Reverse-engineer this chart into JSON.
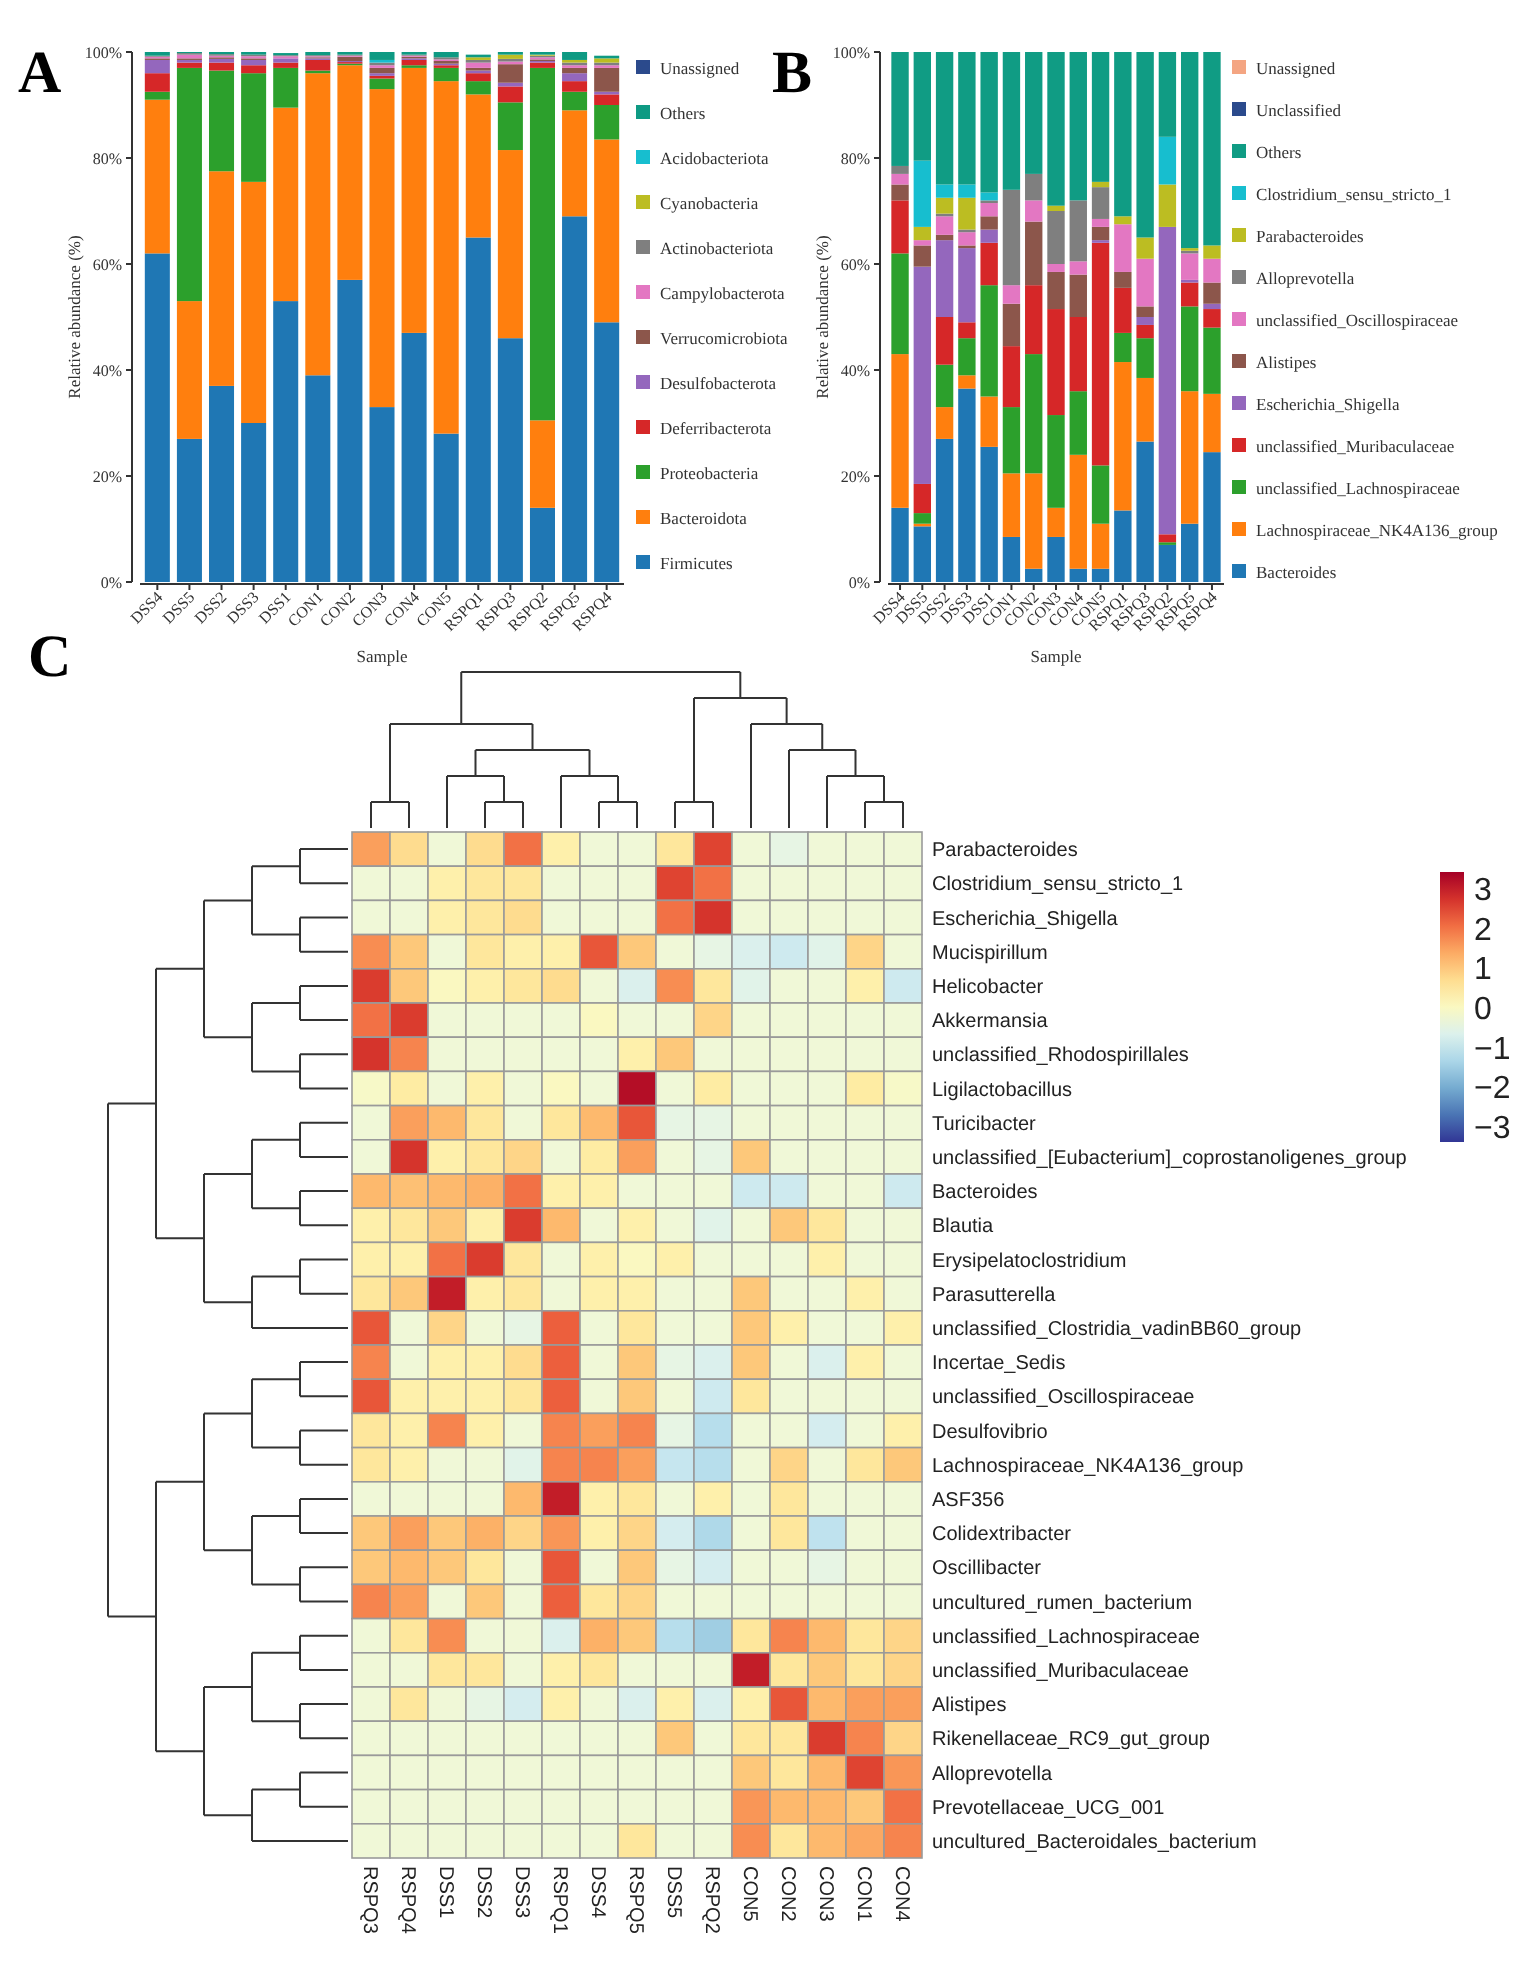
{
  "chart_data": [
    {
      "type": "bar",
      "title": "A",
      "xlabel": "Sample",
      "ylabel": "Relative abundance (%)",
      "stacked": true,
      "legend": "right",
      "categories": [
        "DSS4",
        "DSS5",
        "DSS2",
        "DSS3",
        "DSS1",
        "CON1",
        "CON2",
        "CON3",
        "CON4",
        "CON5",
        "RSPQ1",
        "RSPQ3",
        "RSPQ2",
        "RSPQ5",
        "RSPQ4"
      ],
      "ylim": [
        0,
        100
      ],
      "yticks": [
        {
          "value": 0,
          "label": "0%"
        },
        {
          "value": 20,
          "label": "20%"
        },
        {
          "value": 40,
          "label": "40%"
        },
        {
          "value": 60,
          "label": "60%"
        },
        {
          "value": 80,
          "label": "80%"
        },
        {
          "value": 100,
          "label": "100%"
        }
      ],
      "series": [
        {
          "name": "Firmicutes",
          "color": "#1f77b4",
          "values": [
            62,
            27,
            37,
            30,
            53,
            39,
            57,
            33,
            47,
            28,
            65,
            46,
            14,
            69,
            49
          ]
        },
        {
          "name": "Bacteroidota",
          "color": "#ff7f0e",
          "values": [
            29,
            26,
            40.5,
            45.5,
            36.5,
            57,
            40.5,
            60,
            50,
            66.5,
            27,
            35.5,
            16.5,
            20,
            34.5
          ]
        },
        {
          "name": "Proteobacteria",
          "color": "#2ca02c",
          "values": [
            1.5,
            44,
            19,
            20.5,
            7.5,
            0.5,
            0.3,
            2,
            0.5,
            2.5,
            2.5,
            9,
            66.5,
            3.5,
            6.5
          ]
        },
        {
          "name": "Deferribacterota",
          "color": "#d62728",
          "values": [
            3.5,
            1,
            1.5,
            1.5,
            1,
            2,
            0.3,
            0.5,
            1,
            0.5,
            1.5,
            3,
            1,
            2,
            2
          ]
        },
        {
          "name": "Desulfobacterota",
          "color": "#9467bd",
          "values": [
            2.5,
            0.5,
            0.7,
            1,
            0.8,
            0.3,
            0.2,
            0.5,
            0.3,
            0.3,
            0.5,
            0.7,
            0.3,
            1.5,
            0.5
          ]
        },
        {
          "name": "Verrucomicrobiota",
          "color": "#8c564b",
          "values": [
            0.3,
            0.3,
            0.3,
            0.3,
            null,
            0.2,
            0.8,
            1,
            0.3,
            0.5,
            0.5,
            3.5,
            0.3,
            1,
            4.5
          ]
        },
        {
          "name": "Campylobacterota",
          "color": "#e377c2",
          "values": [
            0.3,
            0.7,
            0.3,
            0.4,
            0.4,
            0.2,
            0.2,
            0.5,
            0.2,
            0.3,
            1,
            0.5,
            0.4,
            0.5,
            0.5
          ]
        },
        {
          "name": "Actinobacteriota",
          "color": "#7f7f7f",
          "values": [
            0.2,
            0.3,
            0.3,
            0.3,
            0.2,
            0.2,
            0.2,
            0.5,
            0.2,
            0.4,
            0.5,
            0.5,
            0.3,
            0.5,
            0.5
          ]
        },
        {
          "name": "Cyanobacteria",
          "color": "#bcbd22",
          "values": [
            0,
            0,
            0,
            0,
            0,
            0,
            0,
            0,
            0,
            0,
            0.5,
            0.8,
            0.2,
            0.5,
            0.8
          ]
        },
        {
          "name": "Acidobacteriota",
          "color": "#17becf",
          "values": [
            0,
            0,
            0,
            0,
            0,
            0,
            0,
            0.5,
            0,
            0,
            0,
            0,
            0,
            0,
            null
          ]
        },
        {
          "name": "Others",
          "color": "#0e9a83",
          "values": [
            0.7,
            0.2,
            0.4,
            0.5,
            0.4,
            0.6,
            0.5,
            1.5,
            0.5,
            1,
            0.5,
            0.5,
            0.5,
            1.5,
            0.5
          ]
        },
        {
          "name": "Unassigned",
          "color": "#2b4a8c",
          "values": [
            0,
            0,
            0,
            0,
            0,
            0,
            0,
            0,
            0,
            0,
            0,
            0,
            0,
            0,
            0
          ]
        }
      ]
    },
    {
      "type": "bar",
      "title": "B",
      "xlabel": "Sample",
      "ylabel": "Relative abundance (%)",
      "stacked": true,
      "legend": "right",
      "categories": [
        "DSS4",
        "DSS5",
        "DSS2",
        "DSS3",
        "DSS1",
        "CON1",
        "CON2",
        "CON3",
        "CON4",
        "CON5",
        "RSPQ1",
        "RSPQ3",
        "RSPQ2",
        "RSPQ5",
        "RSPQ4"
      ],
      "ylim": [
        0,
        100
      ],
      "yticks": [
        {
          "value": 0,
          "label": "0%"
        },
        {
          "value": 20,
          "label": "20%"
        },
        {
          "value": 40,
          "label": "40%"
        },
        {
          "value": 60,
          "label": "60%"
        },
        {
          "value": 80,
          "label": "80%"
        },
        {
          "value": 100,
          "label": "100%"
        }
      ],
      "series": [
        {
          "name": "Bacteroides",
          "color": "#1f77b4",
          "values": [
            14,
            10.5,
            27,
            36.5,
            25.5,
            8.5,
            2.5,
            8.5,
            2.5,
            2.5,
            13.5,
            26.5,
            7,
            11,
            24.5
          ]
        },
        {
          "name": "Lachnospiraceae_NK4A136_group",
          "color": "#ff7f0e",
          "values": [
            29,
            0.5,
            6,
            2.5,
            9.5,
            12,
            18,
            5.5,
            21.5,
            8.5,
            28,
            12,
            0,
            25,
            11
          ]
        },
        {
          "name": "unclassified_Lachnospiraceae",
          "color": "#2ca02c",
          "values": [
            19,
            2,
            8,
            7,
            21,
            12.5,
            22.5,
            17.5,
            12,
            11,
            5.5,
            7.5,
            0.5,
            16,
            12.5
          ]
        },
        {
          "name": "unclassified_Muribaculaceae",
          "color": "#d62728",
          "values": [
            10,
            5.5,
            9,
            3,
            8,
            11.5,
            13,
            20,
            14,
            42,
            8.5,
            2.5,
            1.5,
            4.5,
            3.5
          ]
        },
        {
          "name": "Escherichia_Shigella",
          "color": "#9467bd",
          "values": [
            0,
            41,
            14.5,
            14,
            2.5,
            0,
            0,
            0,
            0,
            0.5,
            0,
            1.5,
            58,
            0.5,
            1
          ]
        },
        {
          "name": "Alistipes",
          "color": "#8c564b",
          "values": [
            3,
            4,
            1,
            0.5,
            2.5,
            8,
            12,
            7,
            8,
            2.5,
            3,
            2,
            0,
            0,
            4
          ]
        },
        {
          "name": "unclassified_Oscillospiraceae",
          "color": "#e377c2",
          "values": [
            2,
            1,
            3.5,
            2.5,
            2.5,
            3.5,
            4,
            1.5,
            2.5,
            1.5,
            9,
            9,
            0,
            5,
            4.5
          ]
        },
        {
          "name": "Alloprevotella",
          "color": "#7f7f7f",
          "values": [
            1.5,
            0,
            0.5,
            0.5,
            0.5,
            18,
            5,
            10,
            11.5,
            6,
            0,
            0,
            0,
            0.5,
            0
          ]
        },
        {
          "name": "Parabacteroides",
          "color": "#bcbd22",
          "values": [
            0,
            2.5,
            3,
            6,
            0,
            0,
            0,
            1,
            0,
            1,
            1.5,
            4,
            8,
            0.5,
            2.5
          ]
        },
        {
          "name": "Clostridium_sensu_stricto_1",
          "color": "#17becf",
          "values": [
            0,
            12.5,
            2.5,
            2.5,
            1.5,
            0,
            0,
            0,
            0,
            0,
            0,
            0,
            9,
            0,
            0
          ]
        },
        {
          "name": "Others",
          "color": "#109c84",
          "values": [
            21.5,
            20.5,
            25,
            25,
            26.5,
            26,
            23,
            29,
            28,
            24.5,
            31,
            35,
            16,
            37,
            36.5
          ]
        },
        {
          "name": "Unclassified",
          "color": "#2b4a8c",
          "values": [
            0,
            0,
            0,
            0,
            0,
            0,
            0,
            0,
            0,
            0,
            0,
            0,
            0,
            0,
            0
          ]
        },
        {
          "name": "Unassigned",
          "color": "#f4a582",
          "values": [
            0,
            0,
            0,
            0,
            0,
            0,
            0,
            0,
            0,
            0,
            0,
            0,
            0,
            0,
            0
          ]
        }
      ]
    },
    {
      "type": "heatmap",
      "title": "C",
      "categories": [
        "RSPQ3",
        "RSPQ4",
        "DSS1",
        "DSS2",
        "DSS3",
        "RSPQ1",
        "DSS4",
        "RSPQ5",
        "DSS5",
        "RSPQ2",
        "CON5",
        "CON2",
        "CON3",
        "CON1",
        "CON4"
      ],
      "y_categories": [
        "Parabacteroides",
        "Clostridium_sensu_stricto_1",
        "Escherichia_Shigella",
        "Mucispirillum",
        "Helicobacter",
        "Akkermansia",
        "unclassified_Rhodospirillales",
        "Ligilactobacillus",
        "Turicibacter",
        "unclassified_[Eubacterium]_coprostanoligenes_group",
        "Bacteroides",
        "Blautia",
        "Erysipelatoclostridium",
        "Parasutterella",
        "unclassified_Clostridia_vadinBB60_group",
        "Incertae_Sedis",
        "unclassified_Oscillospiraceae",
        "Desulfovibrio",
        "Lachnospiraceae_NK4A136_group",
        "ASF356",
        "Colidextribacter",
        "Oscillibacter",
        "uncultured_rumen_bacterium",
        "unclassified_Lachnospiraceae",
        "unclassified_Muribaculaceae",
        "Alistipes",
        "Rikenellaceae_RC9_gut_group",
        "Alloprevotella",
        "Prevotellaceae_UCG_001",
        "uncultured_Bacteroidales_bacterium"
      ],
      "clim": [
        -3.4,
        3.4
      ],
      "cticks": [
        {
          "value": -3,
          "label": "−3"
        },
        {
          "value": -2,
          "label": "−2"
        },
        {
          "value": -1,
          "label": "−1"
        },
        0,
        1,
        2,
        3
      ],
      "cells": [
        [
          1.5,
          0.7,
          -0.3,
          0.7,
          2,
          0.3,
          -0.3,
          -0.3,
          0.5,
          2.5,
          -0.3,
          -0.5,
          -0.3,
          -0.3,
          -0.3
        ],
        [
          -0.3,
          -0.3,
          0.3,
          0.5,
          0.5,
          -0.3,
          -0.3,
          -0.3,
          2.5,
          2,
          -0.3,
          -0.3,
          -0.3,
          -0.3,
          -0.3
        ],
        [
          -0.3,
          -0.3,
          0.3,
          0.5,
          0.7,
          -0.3,
          -0.3,
          -0.3,
          2,
          2.7,
          -0.3,
          -0.3,
          -0.3,
          -0.3,
          -0.3
        ],
        [
          1.7,
          1,
          -0.3,
          0.5,
          0.3,
          0.3,
          2.3,
          1,
          -0.3,
          -0.5,
          -0.7,
          -0.9,
          -0.6,
          0.8,
          -0.3
        ],
        [
          2.6,
          1,
          0,
          0.3,
          0.5,
          0.7,
          -0.3,
          -0.7,
          1.7,
          0.5,
          -0.6,
          -0.3,
          -0.3,
          0.3,
          -0.9
        ],
        [
          2,
          2.6,
          -0.3,
          -0.3,
          -0.3,
          -0.3,
          0,
          -0.3,
          -0.3,
          0.8,
          -0.3,
          -0.3,
          -0.3,
          -0.3,
          -0.3
        ],
        [
          2.7,
          1.8,
          -0.3,
          -0.3,
          -0.3,
          -0.3,
          -0.3,
          0.3,
          1,
          -0.3,
          -0.3,
          -0.3,
          -0.3,
          -0.3,
          -0.3
        ],
        [
          -0.1,
          0.4,
          -0.3,
          0.3,
          -0.3,
          0,
          -0.3,
          3.2,
          -0.3,
          0.4,
          -0.3,
          -0.3,
          -0.3,
          0.4,
          -0.1
        ],
        [
          -0.3,
          1.5,
          1.2,
          0.5,
          -0.3,
          0.5,
          1.2,
          2.3,
          -0.5,
          -0.5,
          -0.3,
          -0.3,
          -0.3,
          -0.3,
          -0.3
        ],
        [
          -0.3,
          2.7,
          0.3,
          0.5,
          0.8,
          -0.3,
          0.4,
          1.5,
          -0.3,
          -0.5,
          1,
          -0.3,
          -0.3,
          -0.3,
          -0.3
        ],
        [
          1.2,
          1.1,
          1.2,
          1.3,
          2,
          0.3,
          0.3,
          -0.3,
          -0.3,
          -0.3,
          -0.9,
          -0.9,
          -0.3,
          -0.3,
          -0.9
        ],
        [
          0.3,
          0.5,
          1,
          0.3,
          2.6,
          1.2,
          -0.3,
          0.3,
          -0.3,
          -0.6,
          -0.3,
          1,
          0.5,
          -0.3,
          -0.3
        ],
        [
          0.3,
          0.3,
          2,
          2.6,
          0.5,
          -0.3,
          0.3,
          0,
          0.3,
          -0.3,
          -0.3,
          -0.3,
          0.3,
          -0.3,
          -0.3
        ],
        [
          0.5,
          1,
          3,
          0.3,
          0.5,
          -0.3,
          0.3,
          0.3,
          -0.3,
          -0.3,
          1,
          -0.3,
          -0.3,
          0.3,
          -0.3
        ],
        [
          2.3,
          -0.3,
          0.8,
          -0.3,
          -0.5,
          2.2,
          -0.3,
          0.5,
          -0.3,
          -0.3,
          1,
          0.3,
          -0.3,
          -0.3,
          0.3
        ],
        [
          1.8,
          -0.3,
          0.3,
          0.3,
          0.7,
          2.2,
          -0.3,
          1,
          -0.5,
          -0.7,
          1,
          -0.3,
          -0.7,
          0.3,
          -0.3
        ],
        [
          2.3,
          0.3,
          0.3,
          0.3,
          0.5,
          2.2,
          -0.3,
          1,
          -0.3,
          -0.9,
          0.5,
          -0.3,
          -0.3,
          -0.3,
          -0.3
        ],
        [
          0.5,
          0.3,
          1.8,
          0.3,
          -0.3,
          1.8,
          1.5,
          1.8,
          -0.5,
          -1.2,
          -0.3,
          -0.3,
          -0.8,
          -0.3,
          0.3
        ],
        [
          0.5,
          0.3,
          -0.3,
          -0.3,
          -0.6,
          1.8,
          1.8,
          1.5,
          -1,
          -1.2,
          -0.3,
          0.8,
          -0.3,
          0.5,
          1
        ],
        [
          -0.3,
          -0.3,
          -0.3,
          -0.3,
          1.2,
          3,
          0.3,
          0.5,
          -0.3,
          0.3,
          -0.3,
          0.5,
          -0.3,
          -0.3,
          -0.3
        ],
        [
          1,
          1.5,
          1,
          1.3,
          0.8,
          1.6,
          0.3,
          0.8,
          -0.8,
          -1.3,
          -0.3,
          0.5,
          -1.1,
          -0.3,
          -0.3
        ],
        [
          1,
          1.2,
          1,
          0.5,
          -0.3,
          2.3,
          -0.3,
          1,
          -0.5,
          -0.8,
          -0.3,
          -0.3,
          -0.5,
          -0.3,
          -0.3
        ],
        [
          1.8,
          1.5,
          -0.3,
          1,
          -0.3,
          2.2,
          0.5,
          0.8,
          -0.3,
          -0.3,
          -0.3,
          -0.3,
          -0.3,
          -0.3,
          -0.3
        ],
        [
          -0.3,
          0.5,
          1.7,
          -0.3,
          -0.3,
          -0.7,
          1.3,
          1,
          -1.2,
          -1.5,
          0.5,
          1.8,
          1.2,
          0.5,
          0.8
        ],
        [
          -0.3,
          -0.3,
          0.5,
          0.5,
          -0.3,
          0.3,
          0.5,
          -0.3,
          -0.3,
          -0.3,
          3,
          0.5,
          1,
          0.5,
          0.8
        ],
        [
          -0.3,
          0.5,
          -0.3,
          -0.5,
          -0.8,
          0.3,
          -0.3,
          -0.7,
          0.3,
          -0.7,
          0.3,
          2.3,
          1.2,
          1.5,
          1.5
        ],
        [
          -0.3,
          -0.3,
          -0.3,
          -0.3,
          -0.3,
          -0.3,
          -0.3,
          -0.3,
          1,
          -0.3,
          0.5,
          0.5,
          2.6,
          1.8,
          0.8
        ],
        [
          -0.3,
          -0.3,
          -0.3,
          -0.3,
          -0.3,
          -0.3,
          -0.3,
          -0.3,
          -0.3,
          -0.3,
          1,
          0.5,
          1.2,
          2.5,
          1.6
        ],
        [
          -0.3,
          -0.3,
          -0.3,
          -0.3,
          -0.3,
          -0.3,
          -0.3,
          -0.3,
          -0.3,
          -0.3,
          1.6,
          1.2,
          1.2,
          1,
          2
        ],
        [
          -0.3,
          -0.3,
          -0.3,
          -0.3,
          -0.3,
          -0.3,
          -0.3,
          0.5,
          -0.3,
          -0.3,
          1.7,
          0.5,
          1.2,
          1.4,
          1.8
        ]
      ]
    }
  ]
}
